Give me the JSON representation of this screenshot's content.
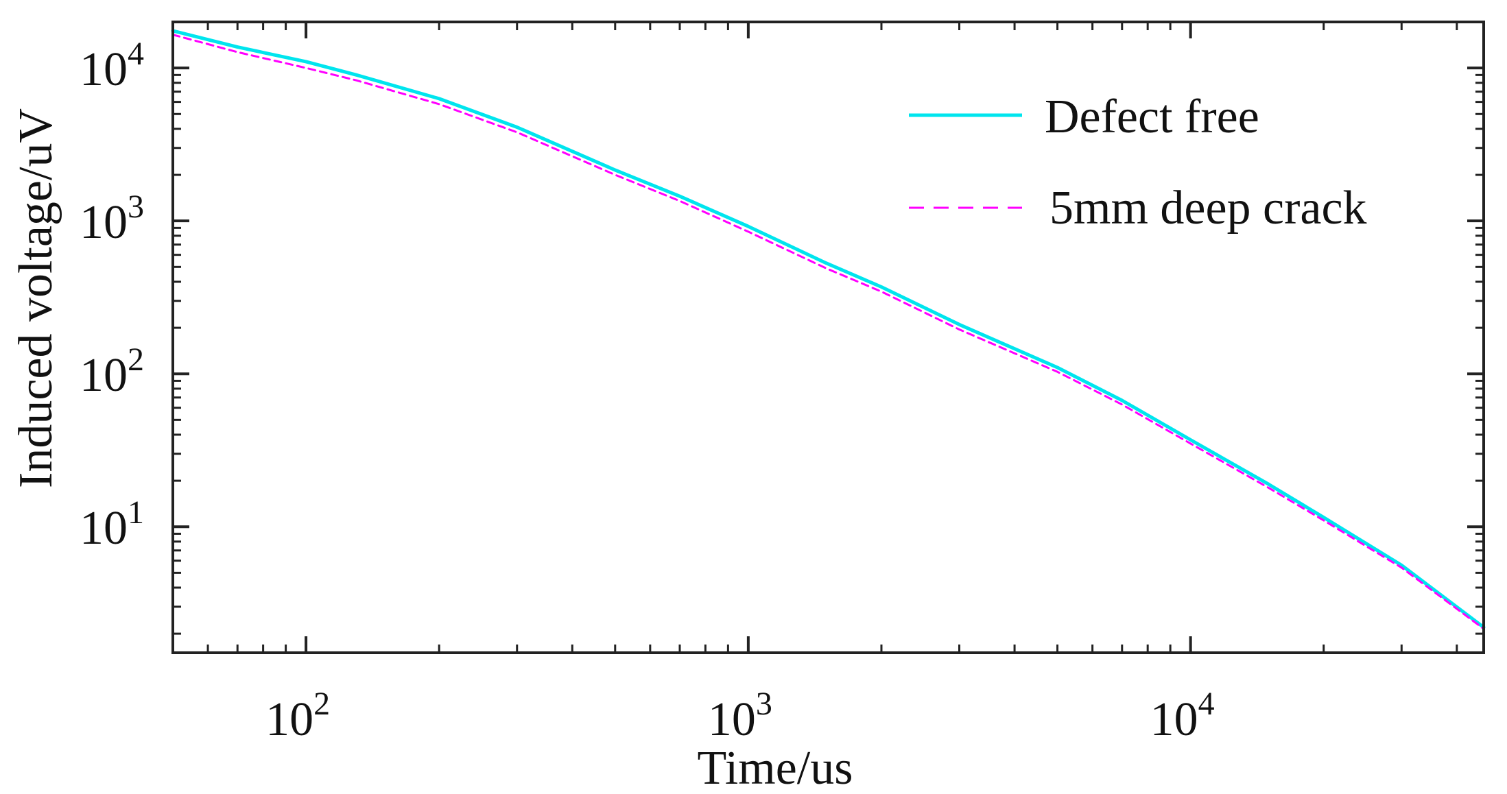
{
  "chart_data": {
    "type": "line",
    "title": "",
    "xlabel": "Time/us",
    "ylabel": "Induced voltage/uV",
    "xscale": "log",
    "yscale": "log",
    "xlim": [
      50,
      46000
    ],
    "ylim": [
      1.5,
      20000
    ],
    "xticks": [
      {
        "value": 100,
        "base": "10",
        "exp": "2"
      },
      {
        "value": 1000,
        "base": "10",
        "exp": "3"
      },
      {
        "value": 10000,
        "base": "10",
        "exp": "4"
      }
    ],
    "yticks": [
      {
        "value": 10,
        "base": "10",
        "exp": "1"
      },
      {
        "value": 100,
        "base": "10",
        "exp": "2"
      },
      {
        "value": 1000,
        "base": "10",
        "exp": "3"
      },
      {
        "value": 10000,
        "base": "10",
        "exp": "4"
      }
    ],
    "grid": false,
    "legend_position": "top-right",
    "series": [
      {
        "name": "Defect free",
        "color": "#00e5ee",
        "dash": "solid",
        "x": [
          50,
          70,
          100,
          130,
          200,
          300,
          500,
          700,
          1000,
          1500,
          2000,
          3000,
          5000,
          7000,
          10000,
          15000,
          20000,
          30000,
          46000
        ],
        "y": [
          17500,
          13700,
          11000,
          9000,
          6300,
          4100,
          2150,
          1450,
          920,
          530,
          370,
          210,
          110,
          67,
          37,
          19,
          11.5,
          5.6,
          2.2
        ]
      },
      {
        "name": "5mm deep crack",
        "color": "#ff00ff",
        "dash": "dashed",
        "x": [
          50,
          70,
          100,
          130,
          200,
          300,
          500,
          700,
          1000,
          1500,
          2000,
          3000,
          5000,
          7000,
          10000,
          15000,
          20000,
          30000,
          46000
        ],
        "y": [
          16500,
          12700,
          10000,
          8300,
          5800,
          3800,
          2000,
          1350,
          850,
          490,
          345,
          195,
          103,
          63,
          35,
          18,
          11,
          5.4,
          2.15
        ]
      }
    ]
  }
}
